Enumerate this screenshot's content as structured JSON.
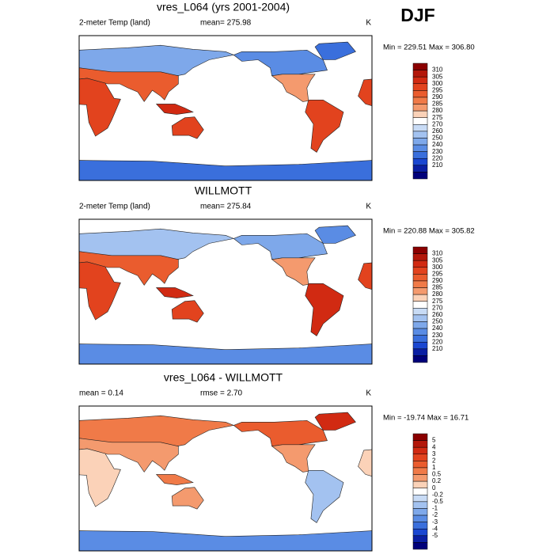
{
  "header": {
    "season": "DJF"
  },
  "panels": [
    {
      "title": "vres_L064 (yrs 2001-2004)",
      "left": "2-meter Temp (land)",
      "center": "mean= 275.98",
      "right": "K",
      "minmax": "Min = 229.51 Max = 306.80",
      "colorbar": {
        "labels": [
          "310",
          "305",
          "300",
          "295",
          "290",
          "285",
          "280",
          "275",
          "270",
          "260",
          "250",
          "240",
          "230",
          "220",
          "210"
        ],
        "colors": [
          "#8b0000",
          "#b3170a",
          "#d12a12",
          "#e2431e",
          "#ea5c2e",
          "#f07a48",
          "#f49a6e",
          "#fbd2b8",
          "#ffffff",
          "#c8dbf5",
          "#a3c2f0",
          "#7ea8ea",
          "#5a8ce4",
          "#3a6fdc",
          "#1a47d1",
          "#0a1fa3",
          "#00007a"
        ]
      }
    },
    {
      "title": "WILLMOTT",
      "left": "2-meter Temp (land)",
      "center": "mean= 275.84",
      "right": "K",
      "minmax": "Min = 220.88 Max = 305.82",
      "colorbar": {
        "labels": [
          "310",
          "305",
          "300",
          "295",
          "290",
          "285",
          "280",
          "275",
          "270",
          "260",
          "250",
          "240",
          "230",
          "220",
          "210"
        ],
        "colors": [
          "#8b0000",
          "#b3170a",
          "#d12a12",
          "#e2431e",
          "#ea5c2e",
          "#f07a48",
          "#f49a6e",
          "#fbd2b8",
          "#ffffff",
          "#c8dbf5",
          "#a3c2f0",
          "#7ea8ea",
          "#5a8ce4",
          "#3a6fdc",
          "#1a47d1",
          "#0a1fa3",
          "#00007a"
        ]
      }
    },
    {
      "title": "vres_L064 - WILLMOTT",
      "left": "mean =   0.14",
      "center": "rmse =   2.70",
      "right": "K",
      "minmax": "Min = -19.74 Max =  16.71",
      "colorbar": {
        "labels": [
          "5",
          "4",
          "3",
          "2",
          "1",
          "0.5",
          "0.2",
          "0",
          "-0.2",
          "-0.5",
          "-1",
          "-2",
          "-3",
          "-4",
          "-5"
        ],
        "colors": [
          "#8b0000",
          "#b3170a",
          "#d12a12",
          "#e2431e",
          "#ea5c2e",
          "#f07a48",
          "#f49a6e",
          "#fbd2b8",
          "#ffffff",
          "#c8dbf5",
          "#a3c2f0",
          "#7ea8ea",
          "#5a8ce4",
          "#3a6fdc",
          "#1a47d1",
          "#0a1fa3",
          "#00007a"
        ]
      }
    }
  ]
}
